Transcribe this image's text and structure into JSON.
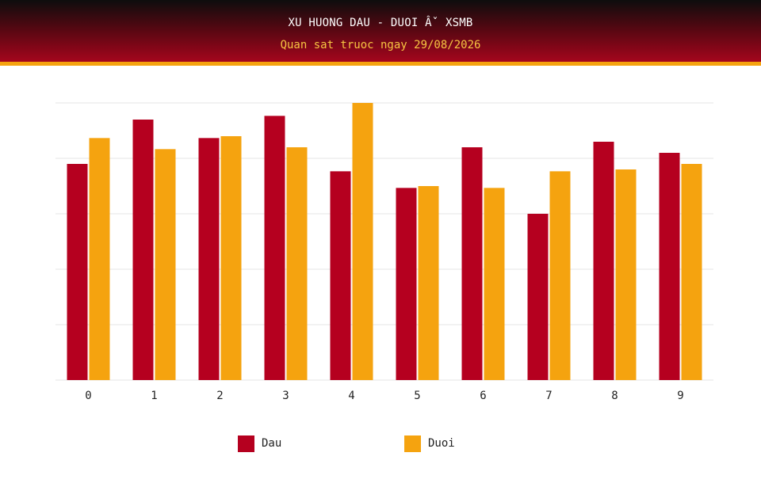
{
  "header": {
    "title": "XU HUONG DAU - DUOI Âˇ XSMB",
    "subtitle": "Quan sat truoc ngay 29/08/2026"
  },
  "colors": {
    "dau": "#b5001f",
    "duoi": "#f5a30f",
    "grid": "#e6e6e6"
  },
  "chart_data": {
    "type": "bar",
    "categories": [
      "0",
      "1",
      "2",
      "3",
      "4",
      "5",
      "6",
      "7",
      "8",
      "9"
    ],
    "series": [
      {
        "name": "Dau",
        "values": [
          11.7,
          14.1,
          13.1,
          14.3,
          11.3,
          10.4,
          12.6,
          9.0,
          12.9,
          12.3
        ]
      },
      {
        "name": "Duoi",
        "values": [
          13.1,
          12.5,
          13.2,
          12.6,
          15.0,
          10.5,
          10.4,
          11.3,
          11.4,
          11.7
        ]
      }
    ],
    "xlabel": "",
    "ylabel": "",
    "ylim": [
      0,
      15
    ],
    "grid": true,
    "legend": "bottom"
  }
}
